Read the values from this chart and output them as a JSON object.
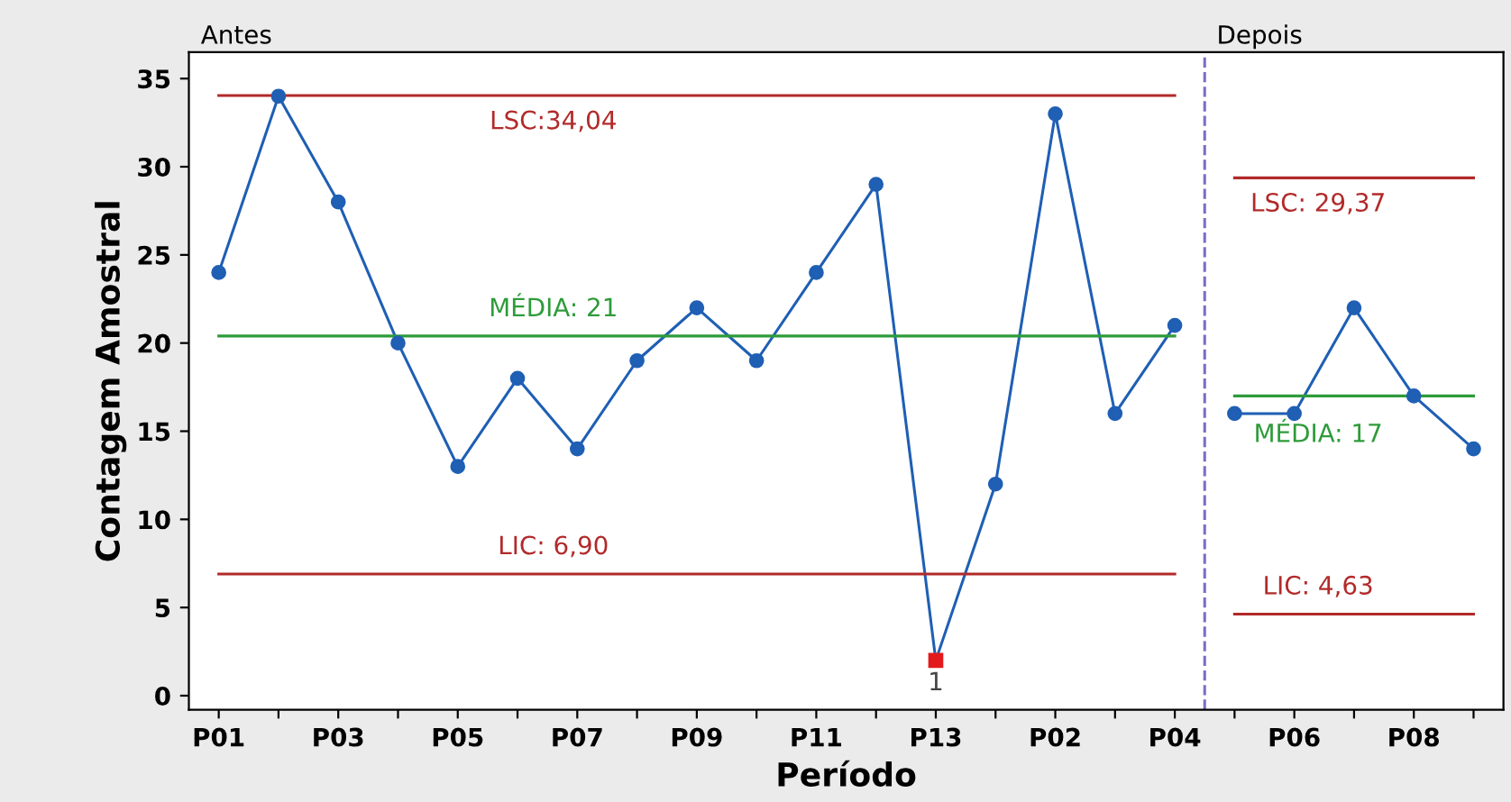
{
  "chart_data": {
    "type": "line",
    "xlabel": "Período",
    "ylabel": "Contagem Amostral",
    "categories": [
      "P01",
      null,
      "P03",
      null,
      "P05",
      null,
      "P07",
      null,
      "P09",
      null,
      "P11",
      null,
      "P13",
      null,
      "P02",
      null,
      "P04",
      null,
      "P06",
      null,
      "P08",
      null
    ],
    "ylim": [
      -0.8,
      36.5
    ],
    "yticks": [
      0,
      5,
      10,
      15,
      20,
      25,
      30,
      35
    ],
    "grid": false,
    "legend": false,
    "marker": "circle",
    "line_style": "solid",
    "series": [
      {
        "color": "#1f5fb4",
        "values": [
          24,
          34,
          28,
          20,
          13,
          18,
          14,
          19,
          22,
          19,
          24,
          29,
          2,
          12,
          33,
          16,
          21,
          null,
          null,
          null,
          null,
          null
        ],
        "colors": [
          "#1f5fb4",
          "#1f5fb4",
          "#1f5fb4",
          "#1f5fb4",
          "#1f5fb4",
          "#1f5fb4",
          "#1f5fb4",
          "#1f5fb4",
          "#1f5fb4",
          "#1f5fb4",
          "#1f5fb4",
          "#1f5fb4",
          "#e31a1c",
          "#1f5fb4",
          "#1f5fb4",
          "#1f5fb4",
          "#1f5fb4",
          null,
          null,
          null,
          null,
          null
        ]
      },
      {
        "color": "#1f5fb4",
        "values": [
          null,
          null,
          null,
          null,
          null,
          null,
          null,
          null,
          null,
          null,
          null,
          null,
          null,
          null,
          null,
          null,
          null,
          16,
          16,
          22,
          17,
          14
        ]
      },
      {
        "name": "LSC:34,04",
        "color": "#b22a2a",
        "marker": "none",
        "values": [
          34.04,
          34.04,
          34.04,
          34.04,
          34.04,
          34.04,
          34.04,
          34.04,
          34.04,
          34.04,
          34.04,
          34.04,
          34.04,
          34.04,
          34.04,
          34.04,
          34.04,
          null,
          null,
          null,
          null,
          null
        ]
      },
      {
        "name": "MÉDIA: 21",
        "color": "#2e9b3a",
        "marker": "none",
        "values": [
          20.4,
          20.4,
          20.4,
          20.4,
          20.4,
          20.4,
          20.4,
          20.4,
          20.4,
          20.4,
          20.4,
          20.4,
          20.4,
          20.4,
          20.4,
          20.4,
          20.4,
          null,
          null,
          null,
          null,
          null
        ]
      },
      {
        "name": "LIC: 6,90",
        "color": "#b22a2a",
        "marker": "none",
        "values": [
          6.9,
          6.9,
          6.9,
          6.9,
          6.9,
          6.9,
          6.9,
          6.9,
          6.9,
          6.9,
          6.9,
          6.9,
          6.9,
          6.9,
          6.9,
          6.9,
          6.9,
          null,
          null,
          null,
          null,
          null
        ]
      },
      {
        "name": "LSC: 29,37",
        "color": "#b22a2a",
        "marker": "none",
        "values": [
          null,
          null,
          null,
          null,
          null,
          null,
          null,
          null,
          null,
          null,
          null,
          null,
          null,
          null,
          null,
          null,
          null,
          29.37,
          29.37,
          29.37,
          29.37,
          29.37
        ]
      },
      {
        "name": "MÉDIA: 17",
        "color": "#2e9b3a",
        "marker": "none",
        "values": [
          null,
          null,
          null,
          null,
          null,
          null,
          null,
          null,
          null,
          null,
          null,
          null,
          null,
          null,
          null,
          null,
          null,
          17,
          17,
          17,
          17,
          17
        ]
      },
      {
        "name": "LIC: 4,63",
        "color": "#b22a2a",
        "marker": "none",
        "values": [
          null,
          null,
          null,
          null,
          null,
          null,
          null,
          null,
          null,
          null,
          null,
          null,
          null,
          null,
          null,
          null,
          null,
          4.63,
          4.63,
          4.63,
          4.63,
          4.63
        ]
      }
    ],
    "annotations": [
      "Antes",
      "Depois",
      "1"
    ]
  }
}
